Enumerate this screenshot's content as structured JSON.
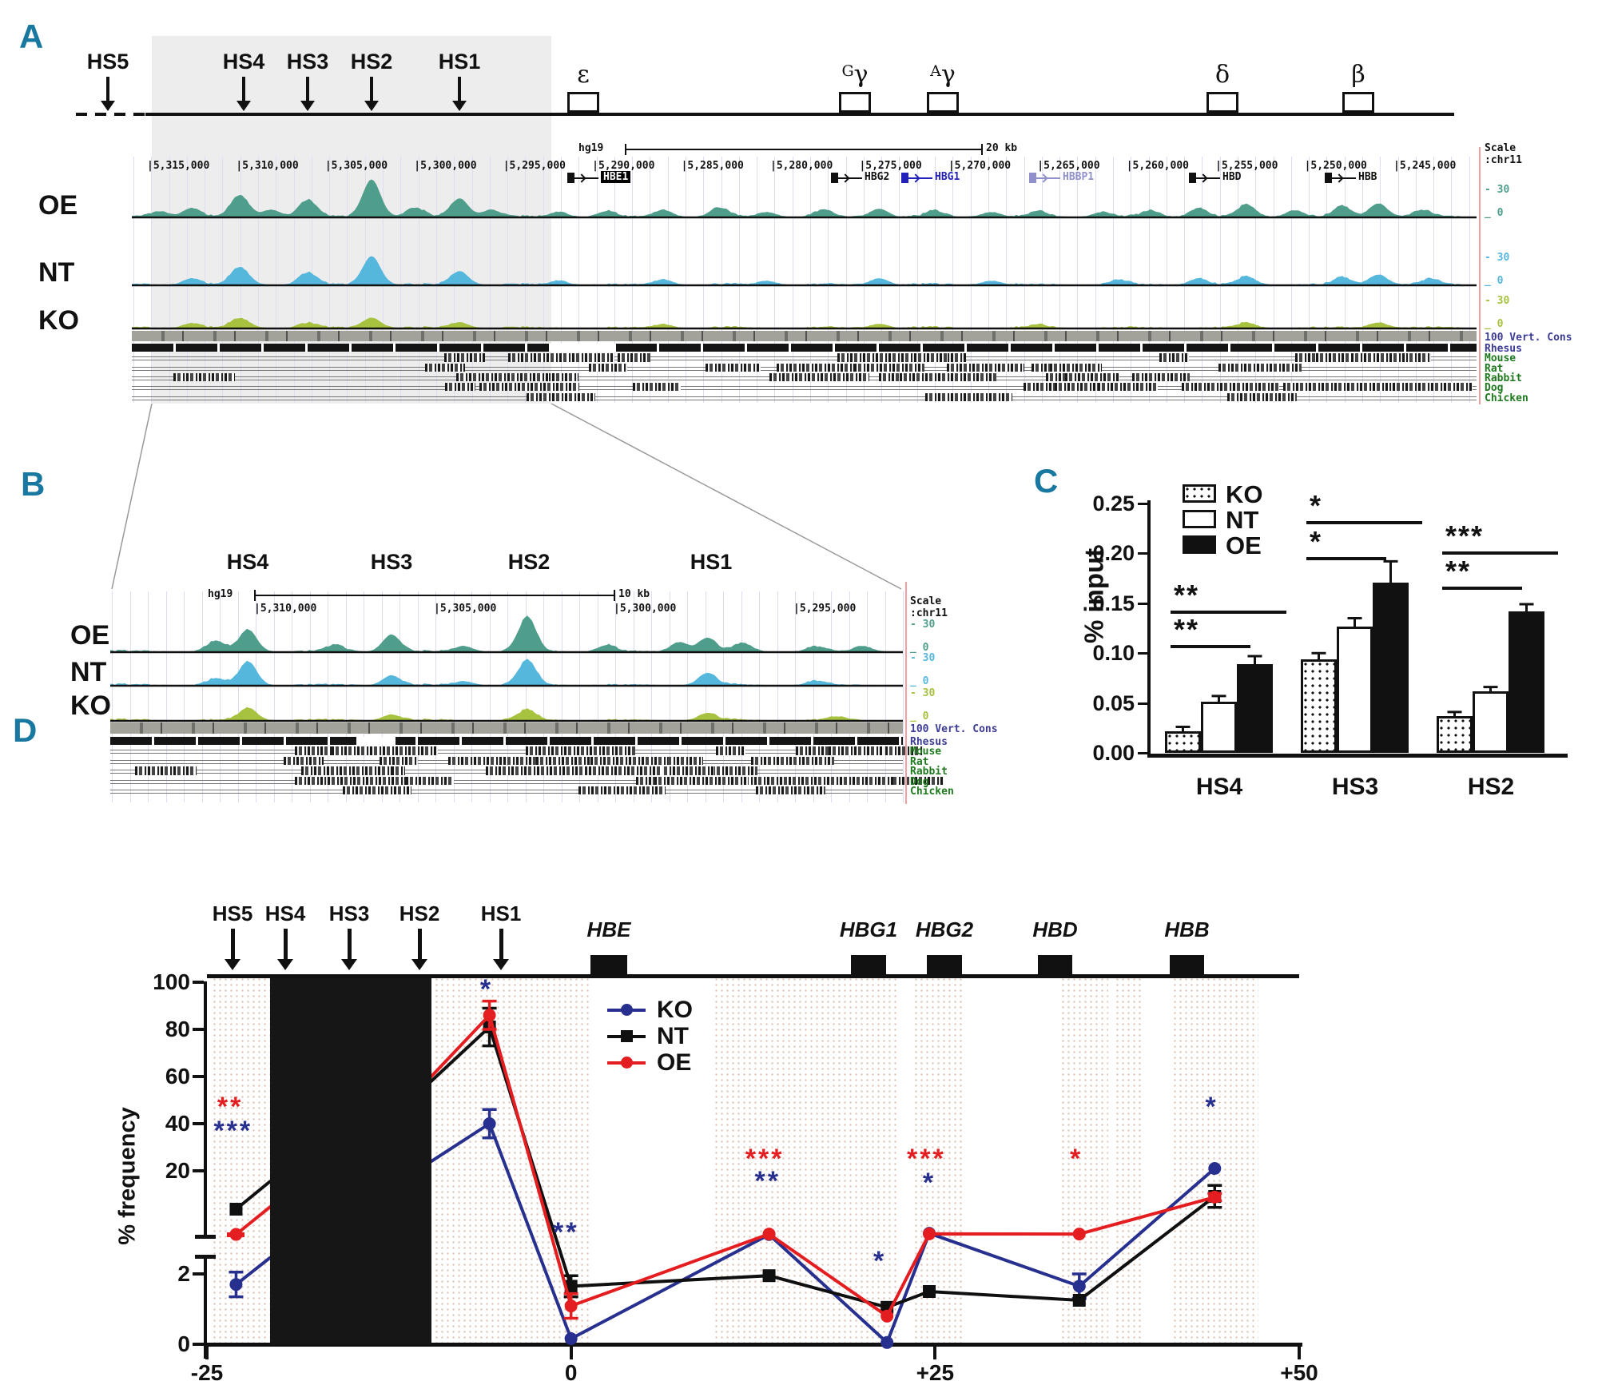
{
  "colors": {
    "panel_letter": "#1878a0",
    "ko_line": "#28308f",
    "nt_line": "#101010",
    "oe_line": "#e41e20",
    "oe_track": "#4f9e8c",
    "nt_track": "#56b7dd",
    "ko_track": "#a6c23f",
    "cons_text": "#3c3c96",
    "species_text": "#1f7a1f",
    "gene_blue": "#2222bb",
    "gene_slate": "#9090cc",
    "star_red": "#e41e20",
    "star_blue": "#28308f"
  },
  "panel_a": {
    "label": "A",
    "hs_labels": [
      "HS5",
      "HS4",
      "HS3",
      "HS2",
      "HS1"
    ],
    "gene_labels": [
      {
        "sup": "",
        "base": "ε"
      },
      {
        "sup": "G",
        "base": "γ"
      },
      {
        "sup": "A",
        "base": "γ"
      },
      {
        "sup": "",
        "base": "δ"
      },
      {
        "sup": "",
        "base": "β"
      }
    ],
    "track_labels": [
      "OE",
      "NT",
      "KO"
    ],
    "browser": {
      "assembly": "hg19",
      "ruler": "20 kb",
      "scale_label": "Scale",
      "chrom": ":chr11",
      "coords": [
        "5,315,000",
        "5,310,000",
        "5,305,000",
        "5,300,000",
        "5,295,000",
        "5,290,000",
        "5,285,000",
        "5,280,000",
        "5,275,000",
        "5,270,000",
        "5,265,000",
        "5,260,000",
        "5,255,000",
        "5,250,000",
        "5,245,000"
      ],
      "genes": [
        "HBE1",
        "HBG2",
        "HBG1",
        "HBBP1",
        "HBD",
        "HBB"
      ],
      "track_scale_max": "- 30",
      "track_scale_min": "_ 0",
      "cons_label": "100 Vert. Cons",
      "species": [
        "Rhesus",
        "Mouse",
        "Rat",
        "Rabbit",
        "Dog",
        "Chicken"
      ],
      "peaks": {
        "OE": [
          [
            200,
            7
          ],
          [
            240,
            11
          ],
          [
            300,
            27
          ],
          [
            340,
            9
          ],
          [
            385,
            21
          ],
          [
            465,
            47
          ],
          [
            520,
            11
          ],
          [
            575,
            23
          ],
          [
            615,
            9
          ],
          [
            700,
            6
          ],
          [
            760,
            7
          ],
          [
            830,
            9
          ],
          [
            900,
            11
          ],
          [
            960,
            6
          ],
          [
            1030,
            8
          ],
          [
            1100,
            10
          ],
          [
            1170,
            7
          ],
          [
            1240,
            6
          ],
          [
            1300,
            7
          ],
          [
            1380,
            6
          ],
          [
            1440,
            8
          ],
          [
            1500,
            11
          ],
          [
            1560,
            15
          ],
          [
            1620,
            8
          ],
          [
            1680,
            13
          ],
          [
            1725,
            17
          ],
          [
            1780,
            8
          ]
        ],
        "NT": [
          [
            240,
            8
          ],
          [
            300,
            22
          ],
          [
            385,
            15
          ],
          [
            465,
            36
          ],
          [
            575,
            17
          ],
          [
            700,
            5
          ],
          [
            830,
            7
          ],
          [
            960,
            5
          ],
          [
            1100,
            8
          ],
          [
            1240,
            5
          ],
          [
            1400,
            6
          ],
          [
            1500,
            8
          ],
          [
            1560,
            10
          ],
          [
            1680,
            9
          ],
          [
            1725,
            13
          ],
          [
            1790,
            7
          ]
        ],
        "KO": [
          [
            240,
            6
          ],
          [
            300,
            12
          ],
          [
            385,
            6
          ],
          [
            465,
            13
          ],
          [
            575,
            7
          ],
          [
            830,
            5
          ],
          [
            1100,
            5
          ],
          [
            1300,
            4
          ],
          [
            1560,
            6
          ],
          [
            1725,
            7
          ]
        ]
      }
    }
  },
  "panel_b": {
    "label": "B",
    "hs_labels": [
      "HS4",
      "HS3",
      "HS2",
      "HS1"
    ],
    "track_labels": [
      "OE",
      "NT",
      "KO"
    ],
    "browser": {
      "assembly": "hg19",
      "ruler": "10 kb",
      "scale_label": "Scale",
      "chrom": ":chr11",
      "coords": [
        "5,310,000",
        "5,305,000",
        "5,300,000",
        "5,295,000"
      ],
      "track_scale_max": "- 30",
      "track_scale_min": "_ 0",
      "cons_label": "100 Vert. Cons",
      "species": [
        "Rhesus",
        "Mouse",
        "Rat",
        "Rabbit",
        "Dog",
        "Chicken"
      ],
      "peaks": {
        "OE": [
          [
            270,
            13
          ],
          [
            310,
            27
          ],
          [
            420,
            8
          ],
          [
            490,
            21
          ],
          [
            580,
            7
          ],
          [
            660,
            43
          ],
          [
            760,
            8
          ],
          [
            850,
            12
          ],
          [
            885,
            17
          ],
          [
            930,
            10
          ],
          [
            1020,
            6
          ],
          [
            1080,
            7
          ]
        ],
        "NT": [
          [
            270,
            8
          ],
          [
            310,
            29
          ],
          [
            490,
            12
          ],
          [
            580,
            5
          ],
          [
            660,
            31
          ],
          [
            885,
            15
          ],
          [
            1020,
            5
          ]
        ],
        "KO": [
          [
            310,
            15
          ],
          [
            490,
            7
          ],
          [
            660,
            13
          ],
          [
            885,
            9
          ],
          [
            1050,
            4
          ]
        ]
      }
    }
  },
  "chart_data": [
    {
      "id": "panel_c",
      "type": "bar",
      "label": "C",
      "ylabel": "% input",
      "ylim": [
        0,
        0.25
      ],
      "ytick_labels": [
        "0.25",
        "0.20",
        "0.15",
        "0.10",
        "0.05",
        "0.00"
      ],
      "yticks": [
        0.25,
        0.2,
        0.15,
        0.1,
        0.05,
        0.0
      ],
      "categories": [
        "HS4",
        "HS3",
        "HS2"
      ],
      "legend": [
        {
          "name": "KO",
          "fill": "dotted"
        },
        {
          "name": "NT",
          "fill": "white"
        },
        {
          "name": "OE",
          "fill": "black"
        }
      ],
      "series": [
        {
          "name": "KO",
          "values": [
            0.022,
            0.094,
            0.037
          ],
          "errors": [
            0.004,
            0.006,
            0.004
          ]
        },
        {
          "name": "NT",
          "values": [
            0.051,
            0.127,
            0.062
          ],
          "errors": [
            0.006,
            0.008,
            0.004
          ]
        },
        {
          "name": "OE",
          "values": [
            0.089,
            0.171,
            0.142
          ],
          "errors": [
            0.008,
            0.021,
            0.007
          ]
        }
      ],
      "significance": [
        {
          "group": 0,
          "stars": "**",
          "level": 0.143,
          "span": [
            0,
            2
          ]
        },
        {
          "group": 0,
          "stars": "**",
          "level": 0.108,
          "span": [
            0,
            1
          ]
        },
        {
          "group": 1,
          "stars": "*",
          "level": 0.232,
          "span": [
            0,
            2
          ]
        },
        {
          "group": 1,
          "stars": "*",
          "level": 0.196,
          "span": [
            0,
            1
          ]
        },
        {
          "group": 2,
          "stars": "***",
          "level": 0.202,
          "span": [
            0,
            2
          ]
        },
        {
          "group": 2,
          "stars": "**",
          "level": 0.167,
          "span": [
            0,
            1
          ]
        }
      ]
    },
    {
      "id": "panel_d",
      "type": "line",
      "label": "D",
      "ylabel": "% frequency",
      "xtick_labels": [
        "-25",
        "0",
        "+25",
        "+50"
      ],
      "xticks": [
        -25,
        0,
        25,
        50
      ],
      "ytick_upper": [
        100,
        80,
        60,
        40,
        20
      ],
      "ytick_lower": [
        2,
        0
      ],
      "axis_break": {
        "upper_range": [
          20,
          100
        ],
        "compressed_range": [
          2.5,
          20
        ],
        "lower_range": [
          0,
          2.5
        ]
      },
      "hs_sites": [
        "HS5",
        "HS4",
        "HS3",
        "HS2",
        "HS1"
      ],
      "gene_sites": [
        "HBE",
        "HBG1",
        "HBG2",
        "HBD",
        "HBB"
      ],
      "legend": [
        "KO",
        "NT",
        "OE"
      ],
      "series": [
        {
          "name": "KO",
          "color": "ko_line",
          "marker": "circle",
          "points": [
            {
              "x": -23,
              "y": 1.7,
              "err": 0.35
            },
            {
              "x": -20.7,
              "y": 2.45,
              "vertex": true
            },
            {
              "x": -9.6,
              "y": 24,
              "vertex": true
            },
            {
              "x": -5.6,
              "y": 40,
              "err": 6
            },
            {
              "x": 0,
              "y": 0.16
            },
            {
              "x": 13.6,
              "y": 2.55
            },
            {
              "x": 21.7,
              "y": 0.05
            },
            {
              "x": 24.6,
              "y": 2.9
            },
            {
              "x": 34.9,
              "y": 1.65,
              "err": 0.35
            },
            {
              "x": 44.2,
              "y": 21
            }
          ]
        },
        {
          "name": "NT",
          "color": "nt_line",
          "marker": "square",
          "points": [
            {
              "x": -23,
              "y": 9.5
            },
            {
              "x": -20.7,
              "y": 17,
              "vertex": true
            },
            {
              "x": -9.6,
              "y": 58,
              "vertex": true
            },
            {
              "x": -5.6,
              "y": 81,
              "err": 8
            },
            {
              "x": 0,
              "y": 1.65,
              "err": 0.3
            },
            {
              "x": 13.6,
              "y": 1.95
            },
            {
              "x": 21.7,
              "y": 1.05
            },
            {
              "x": 24.6,
              "y": 1.5
            },
            {
              "x": 34.9,
              "y": 1.25
            },
            {
              "x": 44.2,
              "y": 13,
              "err": 3
            }
          ]
        },
        {
          "name": "OE",
          "color": "oe_line",
          "marker": "circle",
          "points": [
            {
              "x": -23,
              "y": 2.6
            },
            {
              "x": -20.7,
              "y": 10,
              "vertex": true
            },
            {
              "x": -9.6,
              "y": 60,
              "vertex": true
            },
            {
              "x": -5.6,
              "y": 86,
              "err": 6
            },
            {
              "x": 0,
              "y": 1.09,
              "err": 0.35
            },
            {
              "x": 13.6,
              "y": 2.7
            },
            {
              "x": 21.7,
              "y": 0.8
            },
            {
              "x": 24.6,
              "y": 2.75
            },
            {
              "x": 34.9,
              "y": 2.7
            },
            {
              "x": 44.2,
              "y": 12.8,
              "err": 1
            }
          ]
        }
      ],
      "annotations": [
        {
          "x": -23.4,
          "y": 46,
          "text": "**",
          "color": "star_red"
        },
        {
          "x": -23.2,
          "y": 36,
          "text": "***",
          "color": "star_blue"
        },
        {
          "x": -5.8,
          "y": 96,
          "text": "*",
          "color": "star_blue"
        },
        {
          "x": -0.35,
          "y": 2.52,
          "text": "**",
          "color": "star_blue"
        },
        {
          "x": 13.3,
          "y": 24,
          "text": "***",
          "color": "star_red"
        },
        {
          "x": 13.5,
          "y": 16.5,
          "text": "**",
          "color": "star_blue"
        },
        {
          "x": 21.2,
          "y": 2.3,
          "text": "*",
          "color": "star_blue"
        },
        {
          "x": 24.4,
          "y": 24,
          "text": "***",
          "color": "star_red"
        },
        {
          "x": 24.6,
          "y": 16,
          "text": "*",
          "color": "star_blue"
        },
        {
          "x": 34.7,
          "y": 24,
          "text": "*",
          "color": "star_red"
        },
        {
          "x": 44,
          "y": 46,
          "text": "*",
          "color": "star_blue"
        }
      ],
      "dash_marker": {
        "x": -23,
        "y": 2.5,
        "color": "oe_line"
      }
    }
  ]
}
